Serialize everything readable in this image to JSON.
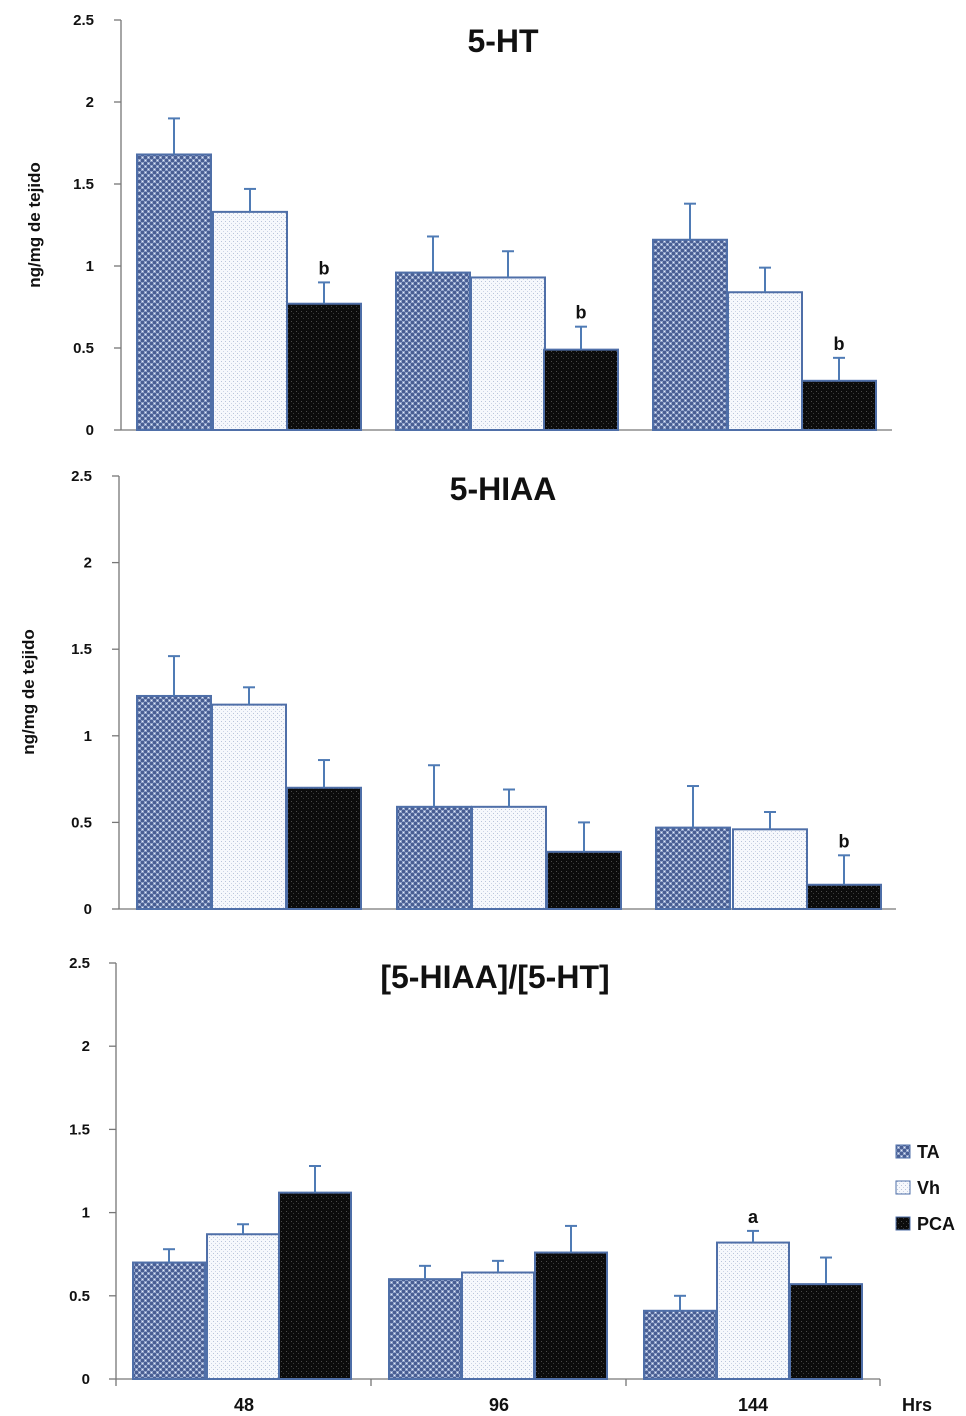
{
  "colors": {
    "TA": "#6a7fae",
    "Vh": "#f4f6fb",
    "PCA": "#101010",
    "bar_outline": "#4f6fa8",
    "error_bar": "#4f7bb5"
  },
  "legend": {
    "position": "right",
    "items": [
      {
        "label": "TA",
        "pattern": "TA"
      },
      {
        "label": "Vh",
        "pattern": "Vh"
      },
      {
        "label": "PCA",
        "pattern": "PCA"
      }
    ]
  },
  "x_axis_unit": "Hrs",
  "chart_data": [
    {
      "type": "bar",
      "title": "5-HT",
      "ylabel": "ng/mg de tejido",
      "xlabel": "",
      "ylim": [
        0,
        2.5
      ],
      "yticks": [
        "0",
        "0.5",
        "1",
        "1.5",
        "2",
        "2.5"
      ],
      "categories": [
        "48",
        "96",
        "144"
      ],
      "grid": false,
      "series": [
        {
          "name": "TA",
          "values": [
            1.68,
            0.96,
            1.16
          ],
          "errors": [
            0.22,
            0.22,
            0.22
          ],
          "labels": [
            "",
            "",
            ""
          ]
        },
        {
          "name": "Vh",
          "values": [
            1.33,
            0.93,
            0.84
          ],
          "errors": [
            0.14,
            0.16,
            0.15
          ],
          "labels": [
            "",
            "",
            ""
          ]
        },
        {
          "name": "PCA",
          "values": [
            0.77,
            0.49,
            0.3
          ],
          "errors": [
            0.13,
            0.14,
            0.14
          ],
          "labels": [
            "b",
            "b",
            "b"
          ]
        }
      ]
    },
    {
      "type": "bar",
      "title": "5-HIAA",
      "ylabel": "ng/mg de tejido",
      "xlabel": "",
      "ylim": [
        0,
        2.5
      ],
      "yticks": [
        "0",
        "0.5",
        "1",
        "1.5",
        "2",
        "2.5"
      ],
      "categories": [
        "48",
        "96",
        "144"
      ],
      "grid": false,
      "series": [
        {
          "name": "TA",
          "values": [
            1.23,
            0.59,
            0.47
          ],
          "errors": [
            0.23,
            0.24,
            0.24
          ],
          "labels": [
            "",
            "",
            ""
          ]
        },
        {
          "name": "Vh",
          "values": [
            1.18,
            0.59,
            0.46
          ],
          "errors": [
            0.1,
            0.1,
            0.1
          ],
          "labels": [
            "",
            "",
            ""
          ]
        },
        {
          "name": "PCA",
          "values": [
            0.7,
            0.33,
            0.14
          ],
          "errors": [
            0.16,
            0.17,
            0.17
          ],
          "labels": [
            "",
            "",
            "b"
          ]
        }
      ]
    },
    {
      "type": "bar",
      "title": "[5-HIAA]/[5-HT]",
      "ylabel": "",
      "xlabel": "Hrs",
      "ylim": [
        0,
        2.5
      ],
      "yticks": [
        "0",
        "0.5",
        "1",
        "1.5",
        "2",
        "2.5"
      ],
      "categories": [
        "48",
        "96",
        "144"
      ],
      "grid": false,
      "series": [
        {
          "name": "TA",
          "values": [
            0.7,
            0.6,
            0.41
          ],
          "errors": [
            0.08,
            0.08,
            0.09
          ],
          "labels": [
            "",
            "",
            ""
          ]
        },
        {
          "name": "Vh",
          "values": [
            0.87,
            0.64,
            0.82
          ],
          "errors": [
            0.06,
            0.07,
            0.07
          ],
          "labels": [
            "",
            "",
            "a"
          ]
        },
        {
          "name": "PCA",
          "values": [
            1.12,
            0.76,
            0.57
          ],
          "errors": [
            0.16,
            0.16,
            0.16
          ],
          "labels": [
            "",
            "",
            ""
          ]
        }
      ]
    }
  ]
}
